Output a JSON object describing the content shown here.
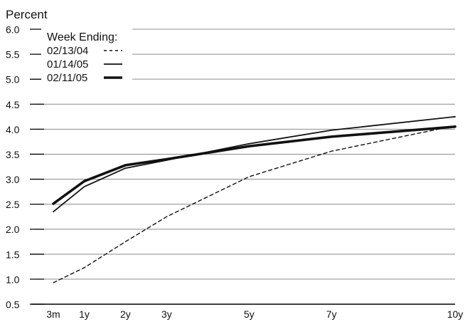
{
  "chart_data": {
    "type": "line",
    "ylabel": "Percent",
    "yticks": [
      "6.0",
      "5.5",
      "5.0",
      "4.5",
      "4.0",
      "3.5",
      "3.0",
      "2.5",
      "2.0",
      "1.5",
      "1.0",
      "0.5"
    ],
    "ylim": [
      0.5,
      6.0
    ],
    "categories": [
      "3m",
      "1y",
      "2y",
      "3y",
      "5y",
      "7y",
      "10y"
    ],
    "x_years": [
      0.25,
      1,
      2,
      3,
      5,
      7,
      10
    ],
    "grid": true,
    "legend_position": "top-left",
    "legend": {
      "title": "Week Ending:"
    },
    "series": [
      {
        "name": "02/13/04",
        "style": "dashed",
        "color": "#111111",
        "values": [
          0.93,
          1.23,
          1.75,
          2.25,
          3.05,
          3.56,
          4.07
        ]
      },
      {
        "name": "01/14/05",
        "style": "solid-thin",
        "color": "#111111",
        "values": [
          2.35,
          2.85,
          3.22,
          3.38,
          3.71,
          3.98,
          4.25
        ]
      },
      {
        "name": "02/11/05",
        "style": "solid-thick",
        "color": "#111111",
        "values": [
          2.51,
          2.96,
          3.28,
          3.4,
          3.66,
          3.85,
          4.05
        ]
      }
    ]
  }
}
